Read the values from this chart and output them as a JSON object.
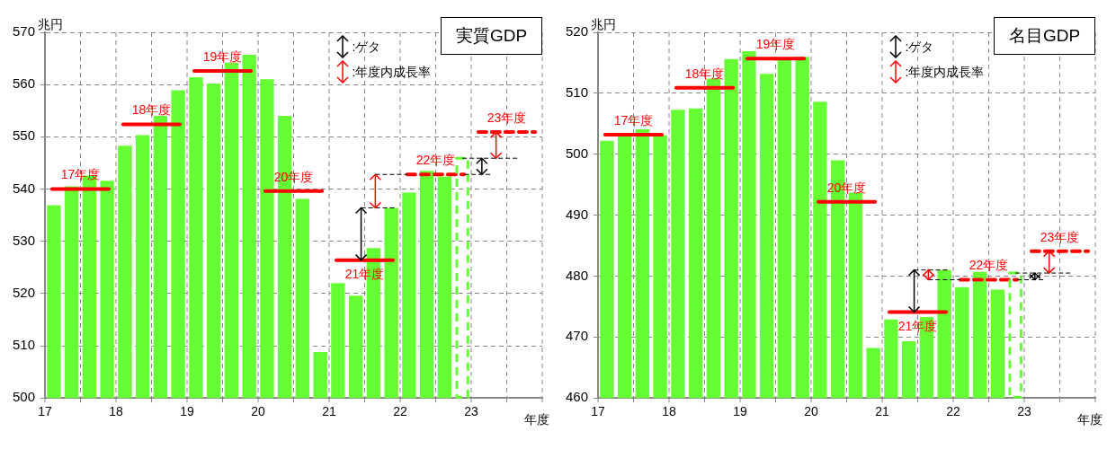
{
  "chart_data": [
    {
      "type": "bar",
      "title": "実質GDP",
      "ylabel": "兆円",
      "xlabel": "年度",
      "xlim": [
        17,
        24
      ],
      "xticks": [
        17,
        18,
        19,
        20,
        21,
        22,
        23,
        {
          "value": 24,
          "label": null
        }
      ],
      "ylim": [
        500,
        570
      ],
      "yticks": [
        500,
        510,
        520,
        530,
        540,
        550,
        560,
        570
      ],
      "grid": true,
      "annotations": [
        ":ゲタ",
        ":年度内成長率"
      ],
      "series": [
        {
          "color": "#66ff33",
          "x": [
            17.125,
            17.375,
            17.625,
            17.875,
            18.125,
            18.375,
            18.625,
            18.875,
            19.125,
            19.375,
            19.625,
            19.875,
            20.125,
            20.375,
            20.625,
            20.875,
            21.125,
            21.375,
            21.625,
            21.875,
            22.125,
            22.375,
            22.625
          ],
          "values": [
            536.9,
            540.5,
            542.6,
            541.6,
            548.3,
            550.3,
            554.0,
            558.9,
            561.4,
            560.2,
            564.2,
            565.7,
            561.0,
            554.0,
            538.1,
            508.8,
            522.0,
            519.6,
            528.7,
            536.4,
            539.3,
            543.5,
            542.4
          ]
        },
        {
          "color": "#66ff33",
          "line_style": "dashed",
          "x": [
            22.875
          ],
          "values": [
            545.9
          ]
        },
        {
          "type": "line",
          "name": "17年度",
          "color": "#ff0000",
          "x": [
            17.1,
            17.9
          ],
          "values": [
            540.0,
            540.0
          ]
        },
        {
          "type": "line",
          "name": "18年度",
          "color": "#ff0000",
          "x": [
            18.1,
            18.9
          ],
          "values": [
            552.4,
            552.4
          ]
        },
        {
          "type": "line",
          "name": "19年度",
          "color": "#ff0000",
          "x": [
            19.1,
            19.9
          ],
          "values": [
            562.6,
            562.6
          ]
        },
        {
          "type": "line",
          "name": "20年度",
          "color": "#ff0000",
          "x": [
            20.1,
            20.9
          ],
          "values": [
            539.6,
            539.6
          ]
        },
        {
          "type": "line",
          "name": "21年度",
          "color": "#ff0000",
          "x": [
            21.1,
            21.9
          ],
          "values": [
            526.4,
            526.4
          ]
        },
        {
          "type": "line",
          "name": "22年度",
          "color": "#ff0000",
          "line_style": "dashed",
          "x": [
            22.1,
            22.9
          ],
          "values": [
            542.8,
            542.8
          ]
        },
        {
          "type": "line",
          "name": "23年度",
          "color": "#ff0000",
          "line_style": "dashed",
          "x": [
            23.1,
            23.9
          ],
          "values": [
            550.9,
            550.9
          ]
        }
      ]
    },
    {
      "type": "bar",
      "title": "名目GDP",
      "ylabel": "兆円",
      "xlabel": "年度",
      "xlim": [
        17,
        24
      ],
      "xticks": [
        17,
        18,
        19,
        20,
        21,
        22,
        23,
        {
          "value": 24,
          "label": null
        }
      ],
      "ylim": [
        460,
        520
      ],
      "yticks": [
        460,
        470,
        480,
        490,
        500,
        510,
        520
      ],
      "grid": true,
      "annotations": [
        ":ゲタ",
        ":年度内成長率"
      ],
      "series": [
        {
          "color": "#66ff33",
          "x": [
            17.125,
            17.375,
            17.625,
            17.875,
            18.125,
            18.375,
            18.625,
            18.875,
            19.125,
            19.375,
            19.625,
            19.875,
            20.125,
            20.375,
            20.625,
            20.875,
            21.125,
            21.375,
            21.625,
            21.875,
            22.125,
            22.375,
            22.625
          ],
          "values": [
            502.2,
            503.0,
            504.1,
            503.1,
            507.3,
            507.5,
            512.4,
            515.6,
            516.9,
            513.2,
            515.6,
            516.0,
            508.6,
            499.0,
            493.7,
            468.2,
            472.9,
            469.3,
            473.3,
            481.0,
            478.2,
            480.7,
            477.8
          ]
        },
        {
          "color": "#66ff33",
          "line_style": "dashed",
          "x": [
            22.875
          ],
          "values": [
            480.5
          ]
        },
        {
          "type": "line",
          "name": "17年度",
          "color": "#ff0000",
          "x": [
            17.1,
            17.9
          ],
          "values": [
            503.2,
            503.2
          ]
        },
        {
          "type": "line",
          "name": "18年度",
          "color": "#ff0000",
          "x": [
            18.1,
            18.9
          ],
          "values": [
            510.9,
            510.9
          ]
        },
        {
          "type": "line",
          "name": "19年度",
          "color": "#ff0000",
          "x": [
            19.1,
            19.9
          ],
          "values": [
            515.7,
            515.7
          ]
        },
        {
          "type": "line",
          "name": "20年度",
          "color": "#ff0000",
          "x": [
            20.1,
            20.9
          ],
          "values": [
            492.2,
            492.2
          ]
        },
        {
          "type": "line",
          "name": "21年度",
          "color": "#ff0000",
          "x": [
            21.1,
            21.9
          ],
          "values": [
            474.1,
            474.1
          ]
        },
        {
          "type": "line",
          "name": "22年度",
          "color": "#ff0000",
          "line_style": "dashed",
          "x": [
            22.1,
            22.9
          ],
          "values": [
            479.4,
            479.4
          ]
        },
        {
          "type": "line",
          "name": "23年度",
          "color": "#ff0000",
          "line_style": "dashed",
          "x": [
            23.1,
            23.9
          ],
          "values": [
            484.1,
            484.1
          ]
        }
      ]
    }
  ]
}
